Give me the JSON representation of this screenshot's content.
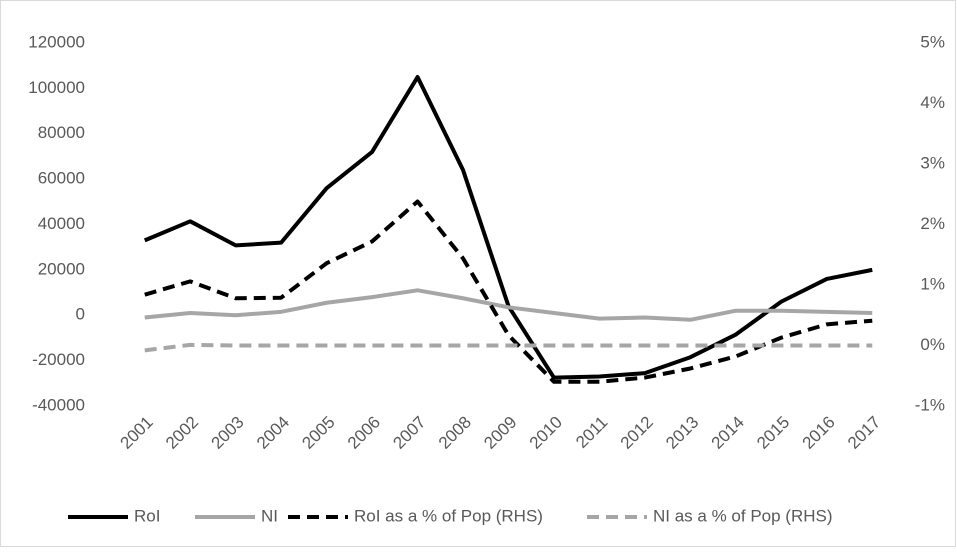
{
  "chart_data": {
    "type": "line",
    "categories": [
      "2001",
      "2002",
      "2003",
      "2004",
      "2005",
      "2006",
      "2007",
      "2008",
      "2009",
      "2010",
      "2011",
      "2012",
      "2013",
      "2014",
      "2015",
      "2016",
      "2017"
    ],
    "series": [
      {
        "name": "RoI",
        "color": "#000000",
        "dashed": false,
        "values": [
          33000,
          41400,
          30800,
          32000,
          56000,
          72000,
          105000,
          64000,
          4000,
          -27500,
          -27000,
          -25500,
          -18500,
          -8500,
          6000,
          16000,
          20000
        ]
      },
      {
        "name": "NI",
        "color": "#a6a6a6",
        "dashed": false,
        "values": [
          -1000,
          1000,
          0,
          1500,
          5500,
          8000,
          11000,
          7500,
          3500,
          1000,
          -1500,
          -1000,
          -2000,
          2000,
          2000,
          1500,
          1000
        ]
      },
      {
        "name": "RoI as a % of Pop (RHS)",
        "color": "#000000",
        "dashed": true,
        "axis": "y2",
        "values": [
          0.84,
          1.06,
          0.78,
          0.79,
          1.36,
          1.72,
          2.38,
          1.44,
          0.17,
          -0.6,
          -0.6,
          -0.53,
          -0.38,
          -0.18,
          0.13,
          0.35,
          0.41
        ]
      },
      {
        "name": "NI as a % of Pop (RHS)",
        "color": "#a6a6a6",
        "dashed": true,
        "axis": "y2",
        "values": [
          -0.08,
          0.01,
          0,
          0,
          0,
          0,
          0,
          0,
          0,
          0,
          0,
          0,
          0,
          0,
          0,
          0,
          0
        ]
      }
    ],
    "ylim": [
      -40000,
      120000
    ],
    "yticks": [
      -40000,
      -20000,
      0,
      20000,
      40000,
      60000,
      80000,
      100000,
      120000
    ],
    "y2lim": [
      -1,
      5
    ],
    "y2ticks": [
      {
        "value": -1,
        "label": "-1%"
      },
      {
        "value": 0,
        "label": "0%"
      },
      {
        "value": 1,
        "label": "1%"
      },
      {
        "value": 2,
        "label": "2%"
      },
      {
        "value": 3,
        "label": "3%"
      },
      {
        "value": 4,
        "label": "4%"
      },
      {
        "value": 5,
        "label": "5%"
      }
    ],
    "legend": "bottom"
  }
}
